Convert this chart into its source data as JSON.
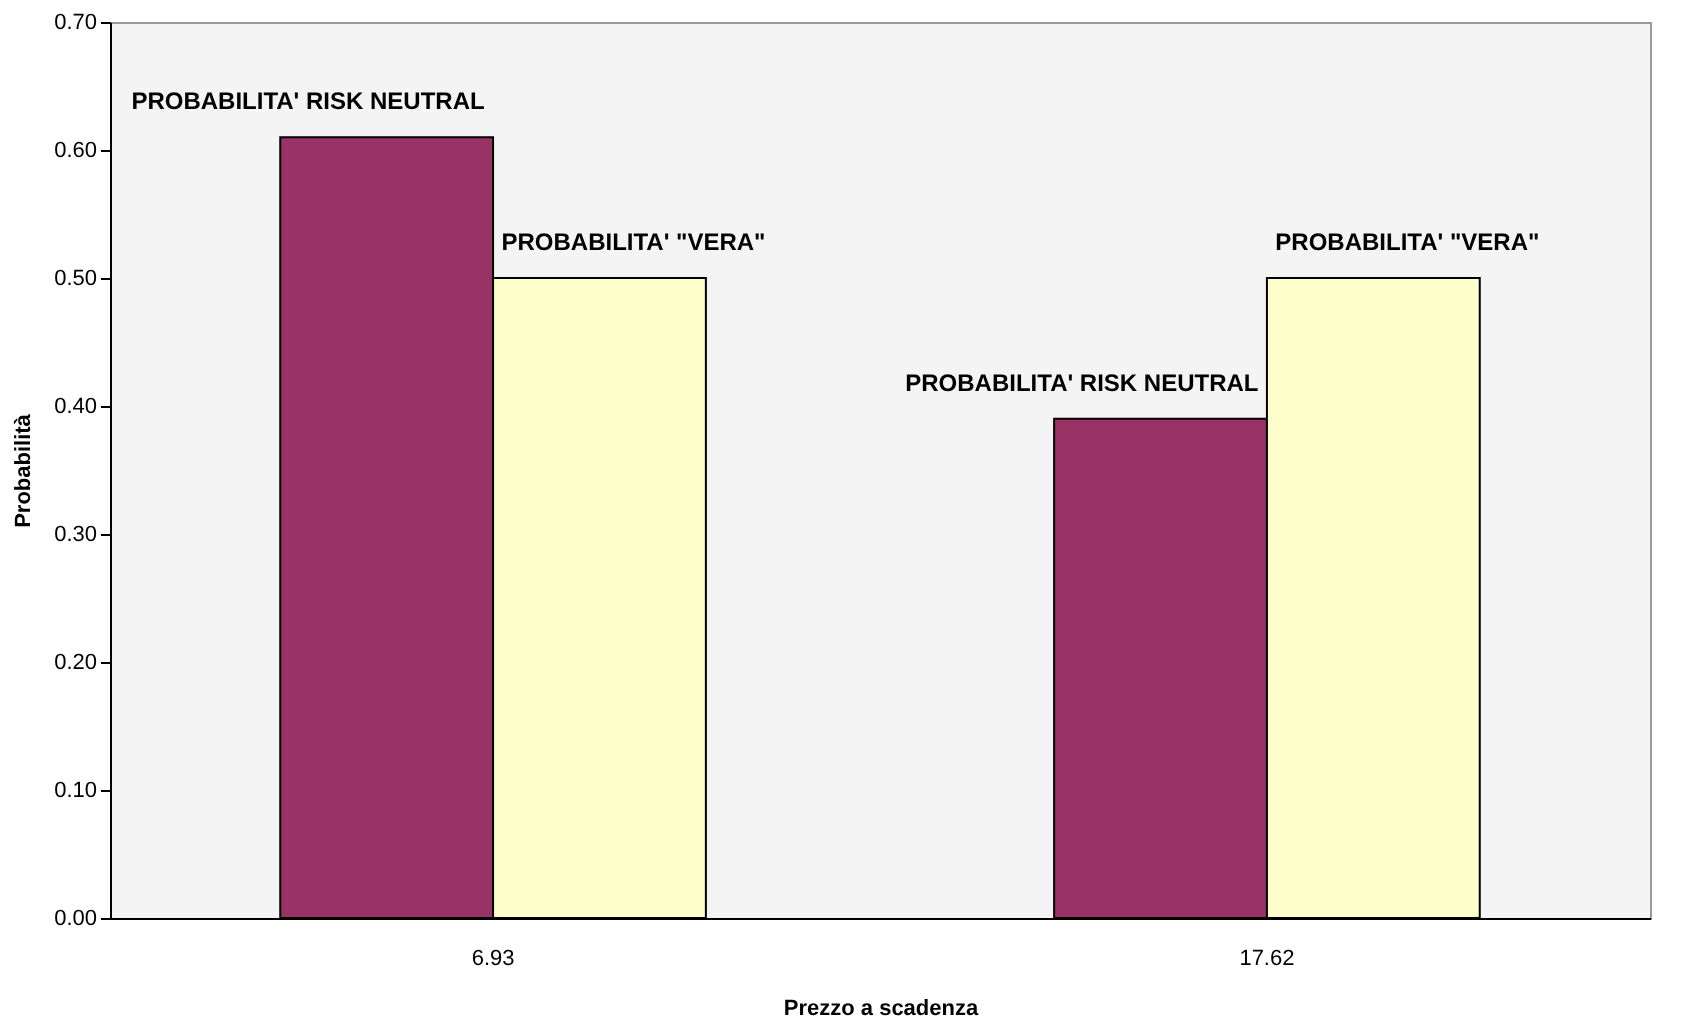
{
  "chart_data": {
    "type": "bar",
    "xlabel": "Prezzo a scadenza",
    "ylabel": "Probabilità",
    "categories": [
      "6.93",
      "17.62"
    ],
    "series": [
      {
        "name": "PROBABILITA' RISK NEUTRAL",
        "color": "#993366",
        "values": [
          0.61,
          0.39
        ]
      },
      {
        "name": "PROBABILITA' \"VERA\"",
        "color": "#ffffcc",
        "values": [
          0.5,
          0.5
        ]
      }
    ],
    "ylim": [
      0,
      0.7
    ],
    "yticks": [
      {
        "value": 0,
        "label": "0.00"
      },
      {
        "value": 0.1,
        "label": "0.10"
      },
      {
        "value": 0.2,
        "label": "0.20"
      },
      {
        "value": 0.3,
        "label": "0.30"
      },
      {
        "value": 0.4,
        "label": "0.40"
      },
      {
        "value": 0.5,
        "label": "0.50"
      },
      {
        "value": 0.6,
        "label": "0.60"
      },
      {
        "value": 0.7,
        "label": "0.70"
      }
    ],
    "grid": false,
    "legend": false
  }
}
